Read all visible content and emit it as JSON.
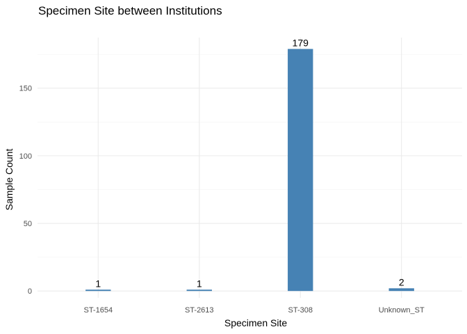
{
  "chart_data": {
    "type": "bar",
    "title": "Specimen Site between Institutions",
    "xlabel": "Specimen Site",
    "ylabel": "Sample Count",
    "categories": [
      "ST-1654",
      "ST-2613",
      "ST-308",
      "Unknown_ST"
    ],
    "values": [
      1,
      1,
      179,
      2
    ],
    "data_labels": [
      "1",
      "1",
      "179",
      "2"
    ],
    "ylim": [
      0,
      188
    ],
    "y_ticks": [
      0,
      50,
      100,
      150
    ],
    "y_tick_labels": [
      "0",
      "50",
      "100",
      "150"
    ],
    "grid": true,
    "legend": "none",
    "bar_color": "#4682b4"
  }
}
